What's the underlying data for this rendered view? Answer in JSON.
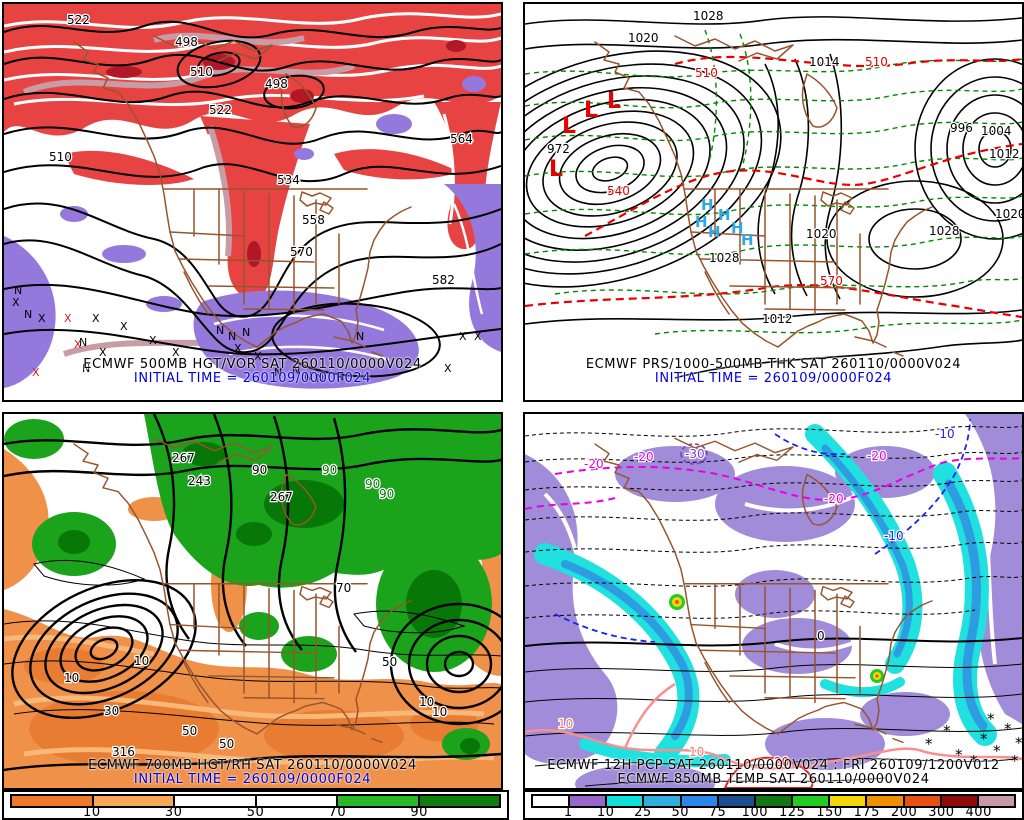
{
  "panels": {
    "p1": {
      "title": "ECMWF 500MB HGT/VOR SAT 260110/0000V024",
      "initial_time": "INITIAL TIME = 260109/0000F024",
      "contour_labels": [
        "522",
        "498",
        "510",
        "498",
        "522",
        "534",
        "564",
        "510",
        "558",
        "570",
        "582"
      ],
      "marker_x": "X",
      "marker_n": "N"
    },
    "p2": {
      "title": "ECMWF PRS/1000-500MB THK SAT 260110/0000V024",
      "initial_time": "INITIAL TIME = 260109/0000F024",
      "pressure_labels": [
        "1028",
        "1020",
        "1014",
        "996",
        "1004",
        "1012",
        "1020",
        "1028",
        "1012",
        "1020",
        "1028",
        "972"
      ],
      "thickness_labels": [
        "540",
        "570",
        "510",
        "510"
      ],
      "low_marker": "L",
      "high_marker": "H"
    },
    "p3": {
      "title": "ECMWF 700MB HGT/RH SAT 260110/0000V024",
      "initial_time": "INITIAL TIME = 260109/0000F024",
      "height_labels": [
        "267",
        "243",
        "267",
        "316"
      ],
      "rh_labels": [
        "10",
        "10",
        "50",
        "50",
        "30",
        "10",
        "10",
        "50",
        "70",
        "90"
      ],
      "rh_green_labels": [
        "90",
        "90",
        "90"
      ]
    },
    "p4": {
      "title": "ECMWF 12H PCP SAT 260110/0000V024 : FRI 260109/1200V012",
      "subtitle": "ECMWF 850MB TEMP SAT 260110/0000V024",
      "magenta_labels": [
        "-20",
        "-20",
        "-20",
        "-20"
      ],
      "purple_label": "-30",
      "blue_labels": [
        "-10",
        "-10"
      ],
      "warm_labels": [
        "10",
        "10"
      ],
      "red_label": "20",
      "zero_label": "0",
      "star_marker": "*"
    }
  },
  "colorbars": {
    "rh": {
      "ticks": [
        "10",
        "30",
        "50",
        "70",
        "90"
      ],
      "colors": [
        "#F07828",
        "#F8A858",
        "#FFFFFF",
        "#FFFFFF",
        "#28B828",
        "#0E7E0E"
      ]
    },
    "pcp": {
      "ticks": [
        "1",
        "10",
        "25",
        "50",
        "75",
        "100",
        "125",
        "150",
        "175",
        "200",
        "300",
        "400"
      ],
      "colors": [
        "#FFFFFF",
        "#9966CC",
        "#10E0D8",
        "#30AEDE",
        "#2B86EC",
        "#1A4E8C",
        "#117711",
        "#22CC22",
        "#F2D80A",
        "#F09000",
        "#E85010",
        "#8F0A0A",
        "#C898A8"
      ]
    }
  },
  "colors": {
    "initial_time_blue": "#0000D8",
    "coast_brown": "#96552D"
  }
}
